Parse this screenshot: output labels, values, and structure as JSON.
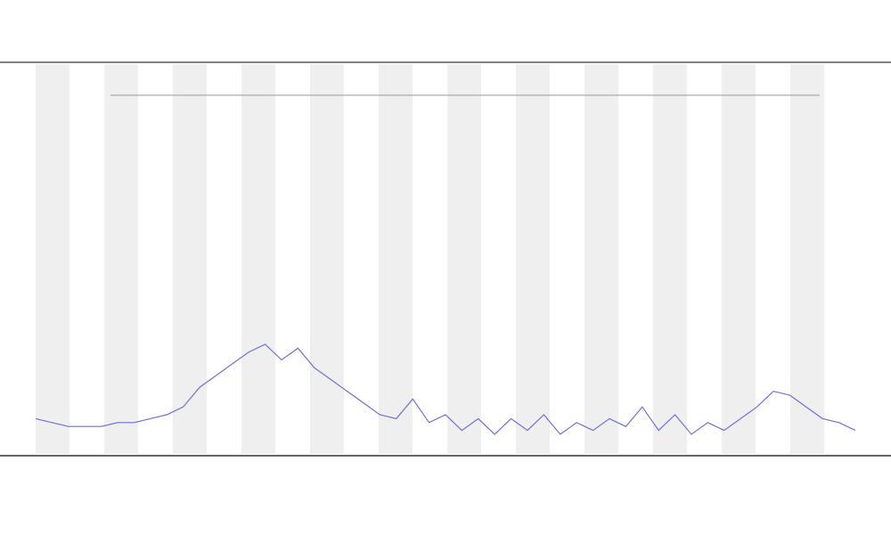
{
  "chart_data": {
    "type": "line",
    "x": [
      0,
      2,
      4,
      6,
      8,
      10,
      12,
      14,
      16,
      18,
      20,
      22,
      24,
      26,
      28,
      30,
      32,
      34,
      36,
      38,
      40,
      42,
      44,
      46,
      48,
      50,
      52,
      54,
      56,
      58,
      60,
      62,
      64,
      66,
      68,
      70,
      72,
      74,
      76,
      78,
      80,
      82,
      84,
      86,
      88,
      90,
      92,
      94,
      96,
      98,
      100
    ],
    "values": [
      9,
      8,
      7,
      7,
      7,
      8,
      8,
      9,
      10,
      12,
      17,
      20,
      23,
      26,
      28,
      24,
      27,
      22,
      19,
      16,
      13,
      10,
      9,
      14,
      8,
      10,
      6,
      9,
      5,
      9,
      6,
      10,
      5,
      8,
      6,
      9,
      7,
      12,
      6,
      10,
      5,
      8,
      6,
      9,
      12,
      16,
      15,
      12,
      9,
      8,
      6
    ],
    "color": "#6f6fd8",
    "xlim": [
      0,
      100
    ],
    "ylim": [
      0,
      100
    ]
  }
}
